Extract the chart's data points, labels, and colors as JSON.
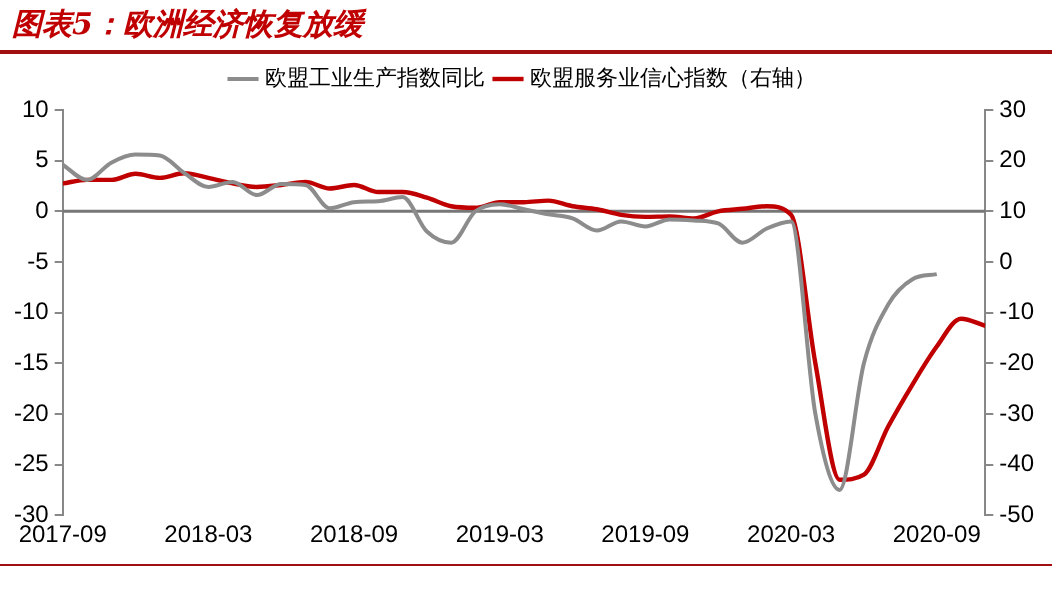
{
  "chart_data": {
    "type": "line",
    "title": "图表5：欧洲经济恢复放缓",
    "x": [
      "2017-09",
      "2017-10",
      "2017-11",
      "2017-12",
      "2018-01",
      "2018-02",
      "2018-03",
      "2018-04",
      "2018-05",
      "2018-06",
      "2018-07",
      "2018-08",
      "2018-09",
      "2018-10",
      "2018-11",
      "2018-12",
      "2019-01",
      "2019-02",
      "2019-03",
      "2019-04",
      "2019-05",
      "2019-06",
      "2019-07",
      "2019-08",
      "2019-09",
      "2019-10",
      "2019-11",
      "2019-12",
      "2020-01",
      "2020-02",
      "2020-03",
      "2020-04",
      "2020-05",
      "2020-06",
      "2020-07",
      "2020-08",
      "2020-09",
      "2020-10",
      "2020-11"
    ],
    "series": [
      {
        "name": "欧盟工业生产指数同比",
        "color": "#8c8c8c",
        "values": [
          4.6,
          3.1,
          4.8,
          5.6,
          5.5,
          3.8,
          2.4,
          2.9,
          1.6,
          2.7,
          2.6,
          0.3,
          0.9,
          1.0,
          1.4,
          -2.0,
          -3.1,
          0.0,
          0.7,
          0.2,
          -0.3,
          -0.7,
          -1.9,
          -1.0,
          -1.5,
          -0.8,
          -0.9,
          -1.2,
          -3.1,
          -1.7,
          -1.0,
          -20,
          -27.5,
          -15,
          -9.2,
          -6.7,
          -6.2,
          null,
          null
        ]
      },
      {
        "name": "欧盟服务业信心指数（右轴）",
        "color": "#c00000",
        "axis": "y2",
        "values": [
          15.5,
          16.2,
          16.2,
          17.4,
          16.6,
          17.5,
          16.6,
          15.5,
          14.8,
          15.2,
          15.8,
          14.5,
          15.2,
          13.8,
          13.8,
          12.7,
          11.0,
          10.7,
          11.8,
          11.8,
          12.1,
          11.0,
          10.4,
          9.3,
          8.9,
          9.0,
          8.6,
          10.0,
          10.5,
          11.0,
          9.3,
          -20,
          -43,
          -42,
          -32.5,
          -24.2,
          -16.7,
          -11.2,
          -12.6
        ]
      }
    ],
    "xlim": [
      "2017-09",
      "2020-11"
    ],
    "xticks": [
      "2017-09",
      "2018-03",
      "2018-09",
      "2019-03",
      "2019-09",
      "2020-03",
      "2020-09"
    ],
    "ylim": [
      -30,
      10
    ],
    "yticks": [
      -30,
      -25,
      -20,
      -15,
      -10,
      -5,
      0,
      5,
      10
    ],
    "y2lim": [
      -50,
      30
    ],
    "y2ticks": [
      -50,
      -40,
      -30,
      -20,
      -10,
      0,
      10,
      20,
      30
    ],
    "ref_lines": [
      {
        "axis": "y",
        "value": 0,
        "color": "#777777"
      }
    ],
    "legend": "top",
    "grid": false,
    "marker": "none",
    "line_style": "solid"
  }
}
